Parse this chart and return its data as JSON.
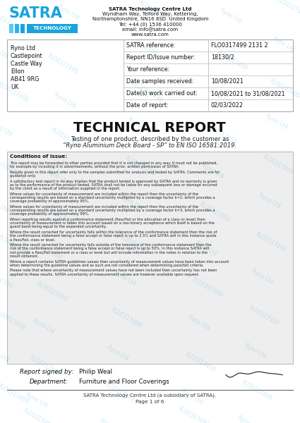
{
  "background_color": "#ffffff",
  "watermark_text1": "FLO0317499",
  "watermark_text2": "Ryno Ltd",
  "satra_blue": "#1aa3dc",
  "header": {
    "company_lines": [
      "SATRA Technology Centre Ltd",
      "Wyndham Way, Telford Way, Kettering,",
      "Northamptonshire, NN16 8SD  United Kingdom",
      "Tel: +44 (0) 1536 410000",
      "email: info@satra.com",
      "www.satra.com"
    ]
  },
  "client": {
    "lines": [
      "Ryno Ltd",
      "Castlepoint",
      "Castle Way",
      "Ellon",
      "AB41 9RG",
      "UK"
    ]
  },
  "table": {
    "rows": [
      [
        "SATRA reference:",
        "FLO0317499 2131 2"
      ],
      [
        "Report ID/Issue number:",
        "18130/2"
      ],
      [
        "Your reference:",
        ""
      ],
      [
        "Date samples received:",
        "10/08/2021"
      ],
      [
        "Date(s) work carried out:",
        "10/08/2021 to 31/08/2021"
      ],
      [
        "Date of report:",
        "02/03/2022"
      ]
    ]
  },
  "title": "TECHNICAL REPORT",
  "subtitle_line1": "Testing of one product, described by the customer as",
  "subtitle_line2": "“Ryno Aluminium Deck Board - SP” to EN ISO 16581:2019.",
  "conditions_title": "Conditions of issue:",
  "conditions_text": [
    "This report may be forwarded to other parties provided that it is not changed in any way.  It must not be published, for example by including it in advertisements, without the prior, written permission of SATRA.",
    "Results given in this report refer only to the samples submitted for analysis and tested by SATRA.  Comments are for guidance only.",
    "A satisfactory test report in no way implies that the product tested is approved by SATRA and no warranty is given as to the performance of the product tested. SATRA shall not be liable for any subsequent loss or damage incurred by the client as a result of information supplied in the report.",
    "Where values for uncertainty of measurement are included within the report then the uncertainty of the corresponding results are based on a standard uncertainty multiplied by a coverage factor k=2, which provides a coverage probability of approximately 95%.",
    "Where values for uncertainty of measurement are included within the report then the uncertainty of the corresponding results are based on a standard uncertainty multiplied by a coverage factor k=3, which provides a coverage probability of approximately 99%.",
    "When reporting results against a conformance statement (Pass/Fail or the allocation of a class or level) then uncertainty of measurement is taken into account based on a non-binary acceptance which itself is based on the guard band being equal to the expanded uncertainty.",
    "Where the result corrected for uncertainty falls within the tolerance of the conformance statement then the risk of the conformance statement being a false accept or false reject is up to 2.5% and SATRA will in this instance quote a Pass/Fail, class or level.",
    "Where the result corrected for uncertainty falls outside of the tolerance of the conformance statement then the risk of the conformance statement being a false accept or false reject is up to 50%. In this instance SATRA will not provide a Pass/Fail statement or a class or level but will include information in the notes in relation to the result obtained.",
    "Where a report contains SATRA guidelines values then uncertainty of measurement values have been taken into account when determining the guideline values and as such are not considered when determining pass/fail criteria.",
    "Please note that where uncertainty of measurement values have not been included then uncertainty has not been applied to these results. SATRA uncertainty of measurement values are however available upon request."
  ],
  "signed_by_label": "Report signed by:",
  "signed_by_name": "Philip Weal",
  "department_label": "Department:",
  "department_name": "Furniture and Floor Coverings",
  "footer_line1": "SATRA Technology Centre Ltd (a subsidiary of SATRA).",
  "footer_line2": "Page 1 of 6",
  "border_color": "#aaaaaa",
  "table_line_color": "#bbbbbb",
  "conditions_bg": "#eeeeee"
}
